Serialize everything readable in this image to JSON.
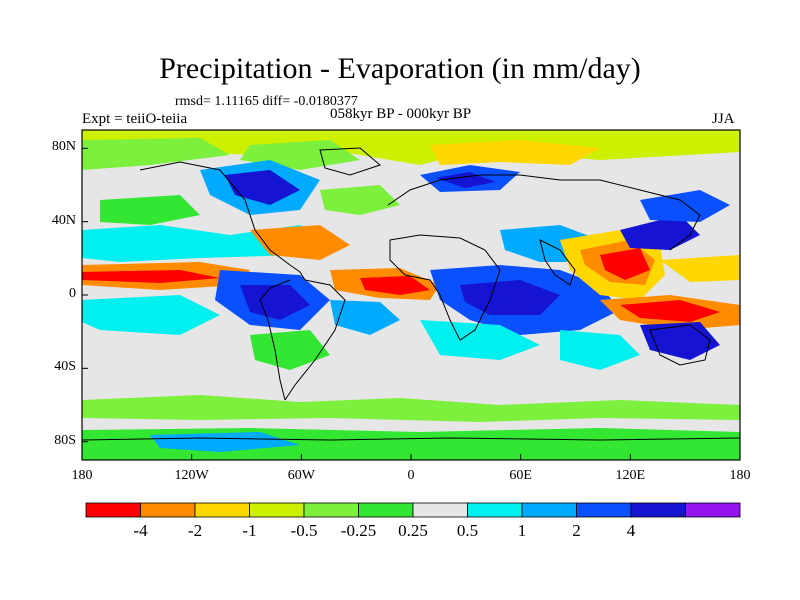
{
  "title": "Precipitation - Evaporation (in mm/day)",
  "stats": "rmsd= 1.11165 diff= -0.0180377",
  "subtitle": "058kyr BP - 000kyr BP",
  "left_label": "Expt = teiiO-teiia",
  "right_label": "JJA",
  "y_ticks": [
    {
      "label": "80N",
      "lat": 80
    },
    {
      "label": "40N",
      "lat": 40
    },
    {
      "label": "0",
      "lat": 0
    },
    {
      "label": "40S",
      "lat": -40
    },
    {
      "label": "80S",
      "lat": -80
    }
  ],
  "x_ticks": [
    {
      "label": "180",
      "lon": -180
    },
    {
      "label": "120W",
      "lon": -120
    },
    {
      "label": "60W",
      "lon": -60
    },
    {
      "label": "0",
      "lon": 0
    },
    {
      "label": "60E",
      "lon": 60
    },
    {
      "label": "120E",
      "lon": 120
    },
    {
      "label": "180",
      "lon": 180
    }
  ],
  "colorbar": {
    "colors": [
      "#ff0000",
      "#ff8c00",
      "#ffd700",
      "#cdf000",
      "#7cf03c",
      "#32e632",
      "#e6e6e6",
      "#00f0f0",
      "#00aaff",
      "#0a50ff",
      "#1414d2",
      "#9614f0"
    ],
    "labels": [
      "-4",
      "-2",
      "-1",
      "-0.5",
      "-0.25",
      "0.25",
      "0.5",
      "1",
      "2",
      "4"
    ]
  }
}
